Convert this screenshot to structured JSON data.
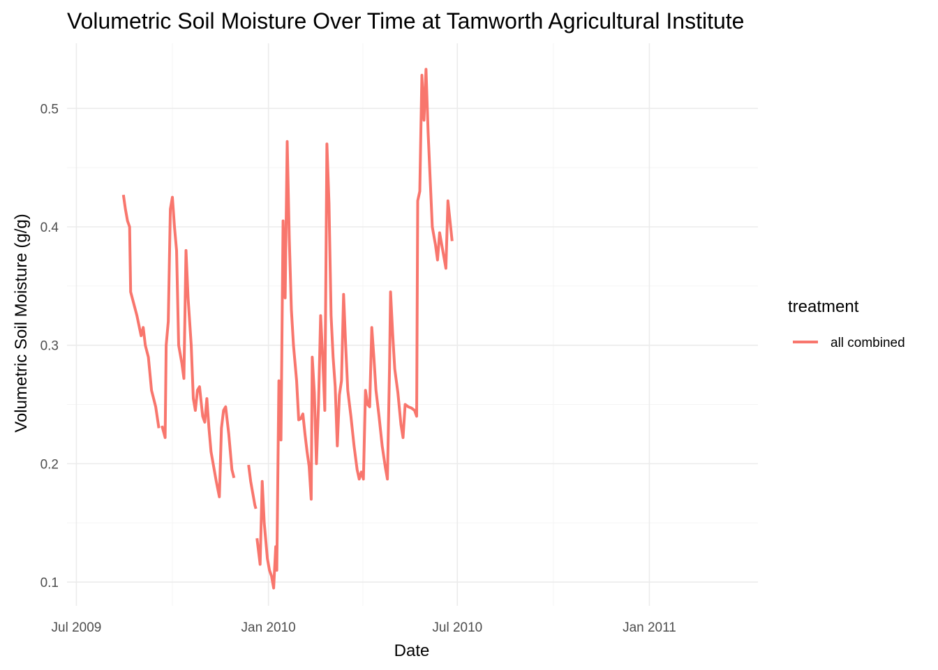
{
  "chart_data": {
    "type": "line",
    "title": "Volumetric Soil Moisture Over Time at Tamworth Agricultural Institute",
    "xlabel": "Date",
    "ylabel": "Volumetric Soil Moisture (g/g)",
    "xlim": [
      "2009-06-22",
      "2011-04-15"
    ],
    "ylim": [
      0.08,
      0.555
    ],
    "x_ticks": [
      {
        "date": "2009-07-01",
        "label": "Jul 2009"
      },
      {
        "date": "2010-01-01",
        "label": "Jan 2010"
      },
      {
        "date": "2010-07-01",
        "label": "Jul 2010"
      },
      {
        "date": "2011-01-01",
        "label": "Jan 2011"
      }
    ],
    "y_ticks": [
      0.1,
      0.2,
      0.3,
      0.4,
      0.5
    ],
    "y_tick_labels": [
      "0.1",
      "0.2",
      "0.3",
      "0.4",
      "0.5"
    ],
    "grid": true,
    "legend": {
      "title": "treatment",
      "position": "right"
    },
    "series": [
      {
        "name": "all combined",
        "color": "#F8766D",
        "segments": [
          [
            [
              "2009-08-15",
              0.427
            ],
            [
              "2009-08-17",
              0.415
            ],
            [
              "2009-08-19",
              0.405
            ],
            [
              "2009-08-21",
              0.4
            ],
            [
              "2009-08-22",
              0.345
            ],
            [
              "2009-08-25",
              0.335
            ],
            [
              "2009-08-28",
              0.325
            ],
            [
              "2009-09-01",
              0.308
            ],
            [
              "2009-09-03",
              0.315
            ],
            [
              "2009-09-05",
              0.3
            ],
            [
              "2009-09-08",
              0.29
            ],
            [
              "2009-09-11",
              0.262
            ],
            [
              "2009-09-15",
              0.248
            ],
            [
              "2009-09-18",
              0.23
            ]
          ],
          [
            [
              "2009-09-21",
              0.232
            ],
            [
              "2009-09-24",
              0.222
            ],
            [
              "2009-09-25",
              0.3
            ],
            [
              "2009-09-27",
              0.32
            ],
            [
              "2009-09-29",
              0.415
            ],
            [
              "2009-10-01",
              0.425
            ],
            [
              "2009-10-03",
              0.4
            ],
            [
              "2009-10-05",
              0.38
            ],
            [
              "2009-10-07",
              0.3
            ],
            [
              "2009-10-10",
              0.285
            ],
            [
              "2009-10-12",
              0.272
            ],
            [
              "2009-10-14",
              0.38
            ],
            [
              "2009-10-16",
              0.34
            ],
            [
              "2009-10-19",
              0.3
            ],
            [
              "2009-10-21",
              0.255
            ],
            [
              "2009-10-23",
              0.245
            ],
            [
              "2009-10-25",
              0.262
            ],
            [
              "2009-10-27",
              0.265
            ],
            [
              "2009-10-30",
              0.24
            ],
            [
              "2009-11-01",
              0.235
            ],
            [
              "2009-11-03",
              0.255
            ],
            [
              "2009-11-05",
              0.23
            ],
            [
              "2009-11-07",
              0.21
            ],
            [
              "2009-11-10",
              0.195
            ],
            [
              "2009-11-12",
              0.185
            ],
            [
              "2009-11-15",
              0.172
            ],
            [
              "2009-11-17",
              0.23
            ],
            [
              "2009-11-19",
              0.245
            ],
            [
              "2009-11-21",
              0.248
            ],
            [
              "2009-11-24",
              0.225
            ],
            [
              "2009-11-27",
              0.195
            ],
            [
              "2009-11-29",
              0.188
            ]
          ],
          [
            [
              "2009-12-13",
              0.199
            ],
            [
              "2009-12-15",
              0.185
            ],
            [
              "2009-12-17",
              0.175
            ],
            [
              "2009-12-19",
              0.165
            ],
            [
              "2009-12-20",
              0.162
            ]
          ],
          [
            [
              "2009-12-21",
              0.137
            ],
            [
              "2009-12-24",
              0.115
            ],
            [
              "2009-12-26",
              0.185
            ],
            [
              "2009-12-28",
              0.15
            ],
            [
              "2009-12-31",
              0.12
            ],
            [
              "2010-01-02",
              0.11
            ],
            [
              "2010-01-04",
              0.105
            ],
            [
              "2010-01-06",
              0.095
            ],
            [
              "2010-01-08",
              0.13
            ],
            [
              "2010-01-09",
              0.11
            ],
            [
              "2010-01-11",
              0.27
            ],
            [
              "2010-01-12",
              0.24
            ],
            [
              "2010-01-13",
              0.22
            ],
            [
              "2010-01-15",
              0.405
            ],
            [
              "2010-01-17",
              0.34
            ],
            [
              "2010-01-19",
              0.472
            ],
            [
              "2010-01-21",
              0.39
            ],
            [
              "2010-01-23",
              0.33
            ],
            [
              "2010-01-25",
              0.3
            ],
            [
              "2010-01-28",
              0.27
            ],
            [
              "2010-01-30",
              0.237
            ],
            [
              "2010-02-01",
              0.238
            ],
            [
              "2010-02-03",
              0.242
            ],
            [
              "2010-02-05",
              0.225
            ],
            [
              "2010-02-07",
              0.21
            ],
            [
              "2010-02-09",
              0.198
            ],
            [
              "2010-02-11",
              0.17
            ],
            [
              "2010-02-12",
              0.29
            ],
            [
              "2010-02-14",
              0.26
            ],
            [
              "2010-02-16",
              0.2
            ],
            [
              "2010-02-18",
              0.25
            ],
            [
              "2010-02-20",
              0.325
            ],
            [
              "2010-02-22",
              0.29
            ],
            [
              "2010-02-24",
              0.245
            ],
            [
              "2010-02-26",
              0.47
            ],
            [
              "2010-02-28",
              0.42
            ],
            [
              "2010-03-02",
              0.325
            ],
            [
              "2010-03-04",
              0.29
            ],
            [
              "2010-03-06",
              0.265
            ],
            [
              "2010-03-08",
              0.215
            ],
            [
              "2010-03-10",
              0.258
            ],
            [
              "2010-03-12",
              0.27
            ],
            [
              "2010-03-14",
              0.343
            ],
            [
              "2010-03-16",
              0.3
            ],
            [
              "2010-03-18",
              0.262
            ],
            [
              "2010-03-21",
              0.24
            ],
            [
              "2010-03-24",
              0.215
            ],
            [
              "2010-03-27",
              0.195
            ],
            [
              "2010-03-29",
              0.187
            ],
            [
              "2010-03-31",
              0.193
            ],
            [
              "2010-04-02",
              0.187
            ],
            [
              "2010-04-04",
              0.262
            ],
            [
              "2010-04-06",
              0.25
            ],
            [
              "2010-04-08",
              0.248
            ],
            [
              "2010-04-10",
              0.315
            ],
            [
              "2010-04-12",
              0.29
            ],
            [
              "2010-04-14",
              0.262
            ],
            [
              "2010-04-17",
              0.24
            ],
            [
              "2010-04-20",
              0.215
            ],
            [
              "2010-04-23",
              0.197
            ],
            [
              "2010-04-25",
              0.187
            ],
            [
              "2010-04-27",
              0.28
            ],
            [
              "2010-04-28",
              0.345
            ],
            [
              "2010-04-30",
              0.31
            ],
            [
              "2010-05-02",
              0.28
            ],
            [
              "2010-05-05",
              0.26
            ],
            [
              "2010-05-08",
              0.233
            ],
            [
              "2010-05-10",
              0.222
            ],
            [
              "2010-05-12",
              0.25
            ],
            [
              "2010-05-15",
              0.248
            ],
            [
              "2010-05-18",
              0.247
            ],
            [
              "2010-05-21",
              0.245
            ],
            [
              "2010-05-23",
              0.24
            ],
            [
              "2010-05-24",
              0.422
            ],
            [
              "2010-05-26",
              0.43
            ],
            [
              "2010-05-27",
              0.48
            ],
            [
              "2010-05-28",
              0.528
            ],
            [
              "2010-05-30",
              0.49
            ],
            [
              "2010-06-01",
              0.533
            ],
            [
              "2010-06-03",
              0.48
            ],
            [
              "2010-06-05",
              0.44
            ],
            [
              "2010-06-07",
              0.4
            ],
            [
              "2010-06-10",
              0.385
            ],
            [
              "2010-06-12",
              0.372
            ],
            [
              "2010-06-14",
              0.395
            ],
            [
              "2010-06-16",
              0.385
            ],
            [
              "2010-06-18",
              0.375
            ],
            [
              "2010-06-20",
              0.365
            ],
            [
              "2010-06-22",
              0.422
            ],
            [
              "2010-06-24",
              0.405
            ],
            [
              "2010-06-26",
              0.388
            ]
          ]
        ]
      }
    ]
  }
}
